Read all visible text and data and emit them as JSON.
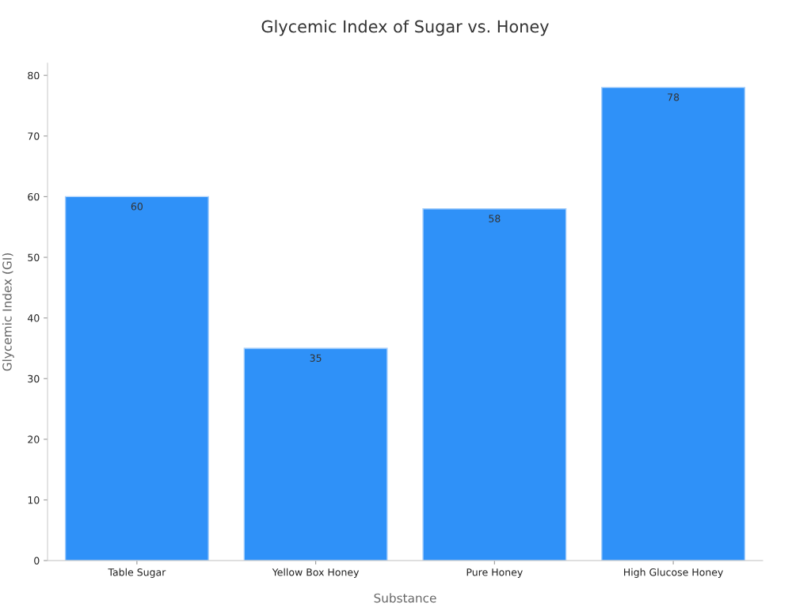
{
  "chart_data": {
    "type": "bar",
    "title": "Glycemic Index of Sugar vs. Honey",
    "xlabel": "Substance",
    "ylabel": "Glycemic Index (GI)",
    "categories": [
      "Table Sugar",
      "Yellow Box Honey",
      "Pure Honey",
      "High Glucose Honey"
    ],
    "values": [
      60,
      35,
      58,
      78
    ],
    "color": "#2f91f8",
    "ylim": [
      0,
      82
    ],
    "yticks": [
      0,
      10,
      20,
      30,
      40,
      50,
      60,
      70,
      80
    ],
    "data_labels": true,
    "grid": false,
    "legend": false
  }
}
